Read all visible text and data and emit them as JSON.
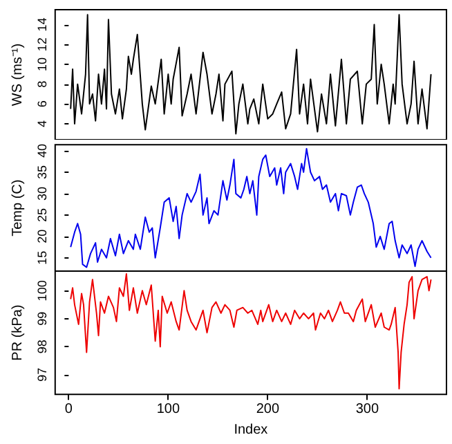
{
  "chart_data": [
    {
      "type": "line",
      "ylabel": "WS (ms⁻¹)",
      "xlim": [
        -13.56,
        379.56
      ],
      "xticks": [
        0,
        100,
        200,
        300
      ],
      "ylim": [
        2.4,
        15.5
      ],
      "yticks": [
        4,
        6,
        8,
        10,
        12,
        14
      ],
      "tick_labels": "y",
      "grid": false,
      "x": [
        2,
        4,
        6,
        9,
        13,
        17,
        19,
        21,
        24,
        27,
        30,
        33,
        36,
        38,
        40,
        43,
        47,
        51,
        54,
        58,
        60,
        63,
        65,
        69,
        74,
        77,
        83,
        87,
        93,
        96,
        100,
        103,
        105,
        111,
        114,
        119,
        123,
        128,
        135,
        139,
        144,
        148,
        151,
        155,
        157,
        164,
        168,
        171,
        175,
        180,
        182,
        186,
        191,
        195,
        200,
        205,
        209,
        214,
        218,
        223,
        229,
        232,
        236,
        240,
        243,
        250,
        254,
        259,
        263,
        268,
        274,
        279,
        283,
        290,
        295,
        299,
        304,
        307,
        310,
        314,
        317,
        322,
        326,
        328,
        332,
        335,
        340,
        344,
        347,
        351,
        355,
        360,
        364
      ],
      "series": [
        {
          "color": "#000000",
          "values": [
            5.5,
            9.5,
            4,
            8,
            5,
            9,
            15,
            6,
            7,
            4.3,
            9,
            6,
            9.5,
            5.5,
            14.5,
            7,
            5,
            7.5,
            4.5,
            7.5,
            10.8,
            9,
            10.5,
            13,
            6,
            3.4,
            7.8,
            6,
            10.5,
            5,
            9,
            6,
            8.5,
            11.7,
            4.8,
            7,
            9,
            5,
            11.2,
            9,
            5,
            7,
            9,
            4.3,
            8,
            9.3,
            3,
            6,
            8,
            4,
            5.5,
            6.5,
            4,
            8,
            4.5,
            5,
            6,
            7.2,
            3.5,
            5,
            11.5,
            5,
            8,
            4,
            8.5,
            3.2,
            7,
            4,
            9,
            3.8,
            10.5,
            4,
            8.5,
            9.3,
            4,
            8,
            8.5,
            14,
            6,
            10,
            8,
            4,
            8,
            6,
            15,
            8,
            4,
            6,
            10.3,
            4,
            7.5,
            3.5,
            9
          ]
        }
      ]
    },
    {
      "type": "line",
      "ylabel": "Temp (C)",
      "xlim": [
        -13.56,
        379.56
      ],
      "xticks": [
        0,
        100,
        200,
        300
      ],
      "ylim": [
        11.9,
        41.4
      ],
      "yticks": [
        15,
        20,
        25,
        30,
        35,
        40
      ],
      "tick_labels": "y",
      "grid": false,
      "x": [
        2,
        6,
        9,
        12,
        14,
        18,
        22,
        27,
        29,
        33,
        38,
        42,
        47,
        51,
        55,
        60,
        65,
        67,
        72,
        77,
        81,
        84,
        87,
        92,
        96,
        101,
        105,
        108,
        111,
        114,
        119,
        123,
        128,
        132,
        135,
        139,
        141,
        146,
        150,
        155,
        159,
        162,
        166,
        168,
        173,
        176,
        179,
        182,
        185,
        189,
        191,
        195,
        198,
        202,
        207,
        209,
        213,
        216,
        218,
        223,
        227,
        230,
        234,
        236,
        239,
        243,
        247,
        252,
        255,
        259,
        263,
        268,
        271,
        274,
        279,
        283,
        286,
        290,
        294,
        297,
        301,
        306,
        309,
        313,
        317,
        322,
        325,
        328,
        332,
        335,
        340,
        344,
        348,
        351,
        355,
        360,
        364
      ],
      "series": [
        {
          "color": "#0000ee",
          "values": [
            17.5,
            21,
            23,
            20.5,
            13.5,
            12.8,
            16,
            18.5,
            14,
            17,
            15,
            19.5,
            15.5,
            20.5,
            16,
            19,
            17,
            20.5,
            17,
            24.5,
            21,
            22,
            15,
            22,
            28,
            29,
            23.5,
            27,
            19.5,
            25,
            30,
            28,
            30.5,
            34.5,
            25,
            29,
            23,
            26,
            25,
            33,
            28.5,
            32,
            38,
            30,
            29,
            31,
            34,
            30,
            33,
            25,
            34,
            38,
            39,
            34,
            36,
            32,
            36,
            30,
            35,
            37,
            34,
            31,
            37,
            35,
            40.5,
            35,
            33,
            34,
            31,
            32,
            28,
            30,
            26,
            30,
            29.5,
            25,
            28,
            31.5,
            32,
            30,
            28,
            23,
            17.5,
            20,
            17,
            23,
            23.5,
            19,
            15,
            18,
            16,
            18,
            13,
            17,
            19,
            16.5,
            15
          ]
        }
      ]
    },
    {
      "type": "line",
      "xlabel": "Index",
      "ylabel": "PR (kPa)",
      "xlim": [
        -13.56,
        379.56
      ],
      "xticks": [
        0,
        100,
        200,
        300
      ],
      "ylim": [
        96.3,
        100.7
      ],
      "yticks": [
        97,
        98,
        99,
        100
      ],
      "grid": false,
      "x": [
        2,
        4,
        6,
        10,
        13,
        15,
        18,
        21,
        24,
        28,
        30,
        32,
        36,
        40,
        45,
        48,
        51,
        55,
        58,
        61,
        65,
        69,
        74,
        78,
        83,
        87,
        90,
        92,
        94,
        99,
        103,
        108,
        111,
        116,
        119,
        123,
        128,
        135,
        139,
        144,
        148,
        153,
        157,
        162,
        166,
        169,
        175,
        180,
        184,
        190,
        193,
        195,
        201,
        205,
        209,
        214,
        218,
        223,
        227,
        232,
        236,
        241,
        246,
        248,
        253,
        257,
        261,
        265,
        270,
        273,
        277,
        281,
        286,
        289,
        295,
        298,
        304,
        308,
        314,
        317,
        322,
        324,
        328,
        331,
        332,
        334,
        337,
        340,
        342,
        345,
        347,
        351,
        355,
        360,
        362,
        364
      ],
      "series": [
        {
          "color": "#ee0000",
          "values": [
            99.7,
            100.1,
            99.5,
            98.8,
            99.9,
            99.5,
            97.8,
            99.6,
            100.4,
            99.2,
            98.4,
            99.6,
            99.2,
            99.8,
            99.4,
            98.9,
            100.1,
            99.8,
            100.6,
            99.3,
            100.1,
            99.2,
            100.0,
            99.5,
            100.2,
            98.2,
            99.3,
            98,
            99.8,
            99.2,
            99.6,
            98.9,
            98.6,
            100,
            99.3,
            98.9,
            98.6,
            99.3,
            98.5,
            99.4,
            99.6,
            99.2,
            99.5,
            99.3,
            98.7,
            99.3,
            99.4,
            99.2,
            99.3,
            98.8,
            99.3,
            98.9,
            99.5,
            98.9,
            99.3,
            98.9,
            99.2,
            98.8,
            99.3,
            99.0,
            99.2,
            99.0,
            99.2,
            98.6,
            99.2,
            99.0,
            99.3,
            98.9,
            99.3,
            99.6,
            99.2,
            99.2,
            98.9,
            99.3,
            99.7,
            98.9,
            99.5,
            98.7,
            99.2,
            98.7,
            98.6,
            98.8,
            99.4,
            97.8,
            96.5,
            97.8,
            98.8,
            99.5,
            100.3,
            100.5,
            99.0,
            100.0,
            100.4,
            100.5,
            100.0,
            100.4
          ]
        }
      ]
    }
  ]
}
